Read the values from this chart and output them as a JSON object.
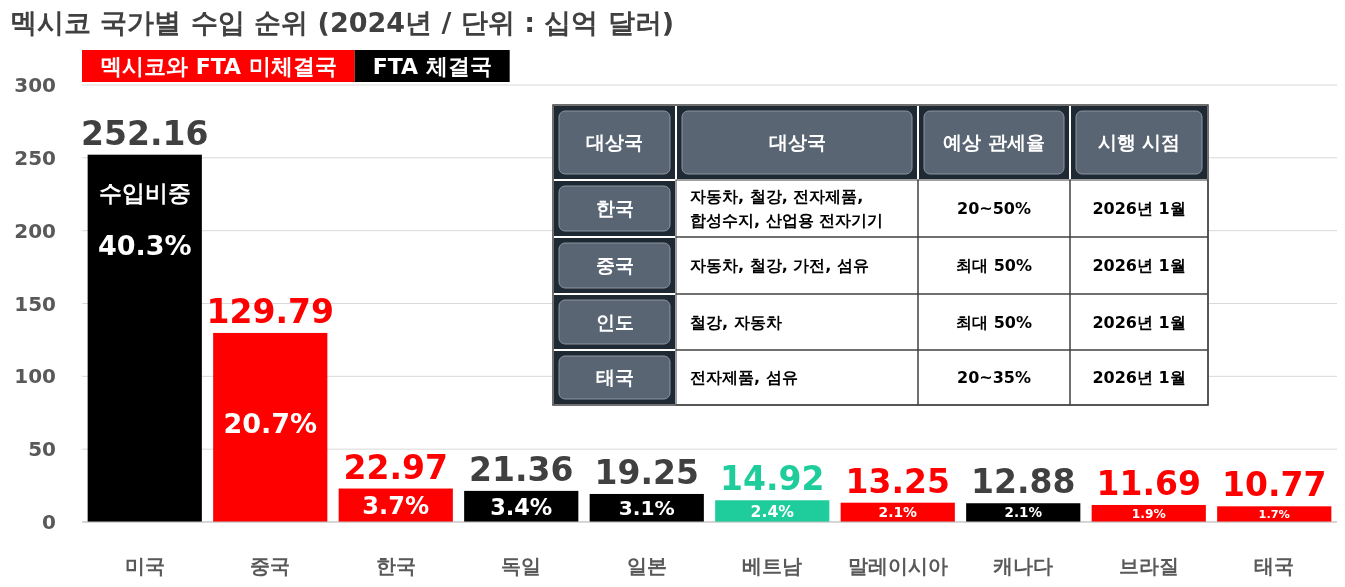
{
  "chart_data": {
    "type": "bar",
    "title": "멕시코 국가별 수입 순위 (2024년 / 단위 : 십억 달러)",
    "categories": [
      "미국",
      "중국",
      "한국",
      "독일",
      "일본",
      "베트남",
      "말레이시아",
      "캐나다",
      "브라질",
      "태국"
    ],
    "series": [
      {
        "name": "멕시코와 FTA 미체결국",
        "color": "#ff0000",
        "values": [
          null,
          129.79,
          22.97,
          null,
          null,
          null,
          13.25,
          null,
          11.69,
          10.77
        ]
      },
      {
        "name": "FTA 체결국",
        "color": "#000000",
        "values": [
          252.16,
          null,
          null,
          21.36,
          19.25,
          null,
          null,
          12.88,
          null,
          null
        ]
      },
      {
        "color": "#1fcc9b",
        "values": [
          null,
          null,
          null,
          null,
          null,
          14.92,
          null,
          null,
          null,
          null
        ]
      }
    ],
    "stacked": true,
    "ylim": [
      0,
      300
    ],
    "yticks": [
      0,
      50,
      100,
      150,
      200,
      250,
      300
    ],
    "grid": "y",
    "legend": "top left",
    "data_labels": true,
    "annotations": [
      "수입비중",
      "40.3%",
      "20.7%",
      "3.7%",
      "3.4%",
      "3.1%",
      "2.4%",
      "2.1%",
      "2.1%",
      "1.9%",
      "1.7%",
      "대상국",
      "대상국",
      "예상 관세율",
      "시행 시점",
      "한국",
      "자동차, 철강, 전자제품,\n합성수지, 산업용 전자기기",
      "20~50%",
      "2026년 1월",
      "중국",
      "자동차, 철강, 가전, 섬유",
      "최대 50%",
      "2026년 1월",
      "인도",
      "철강, 자동차",
      "최대 50%",
      "2026년 1월",
      "태국",
      "전자제품, 섬유",
      "20~35%",
      "2026년 1월"
    ]
  }
}
